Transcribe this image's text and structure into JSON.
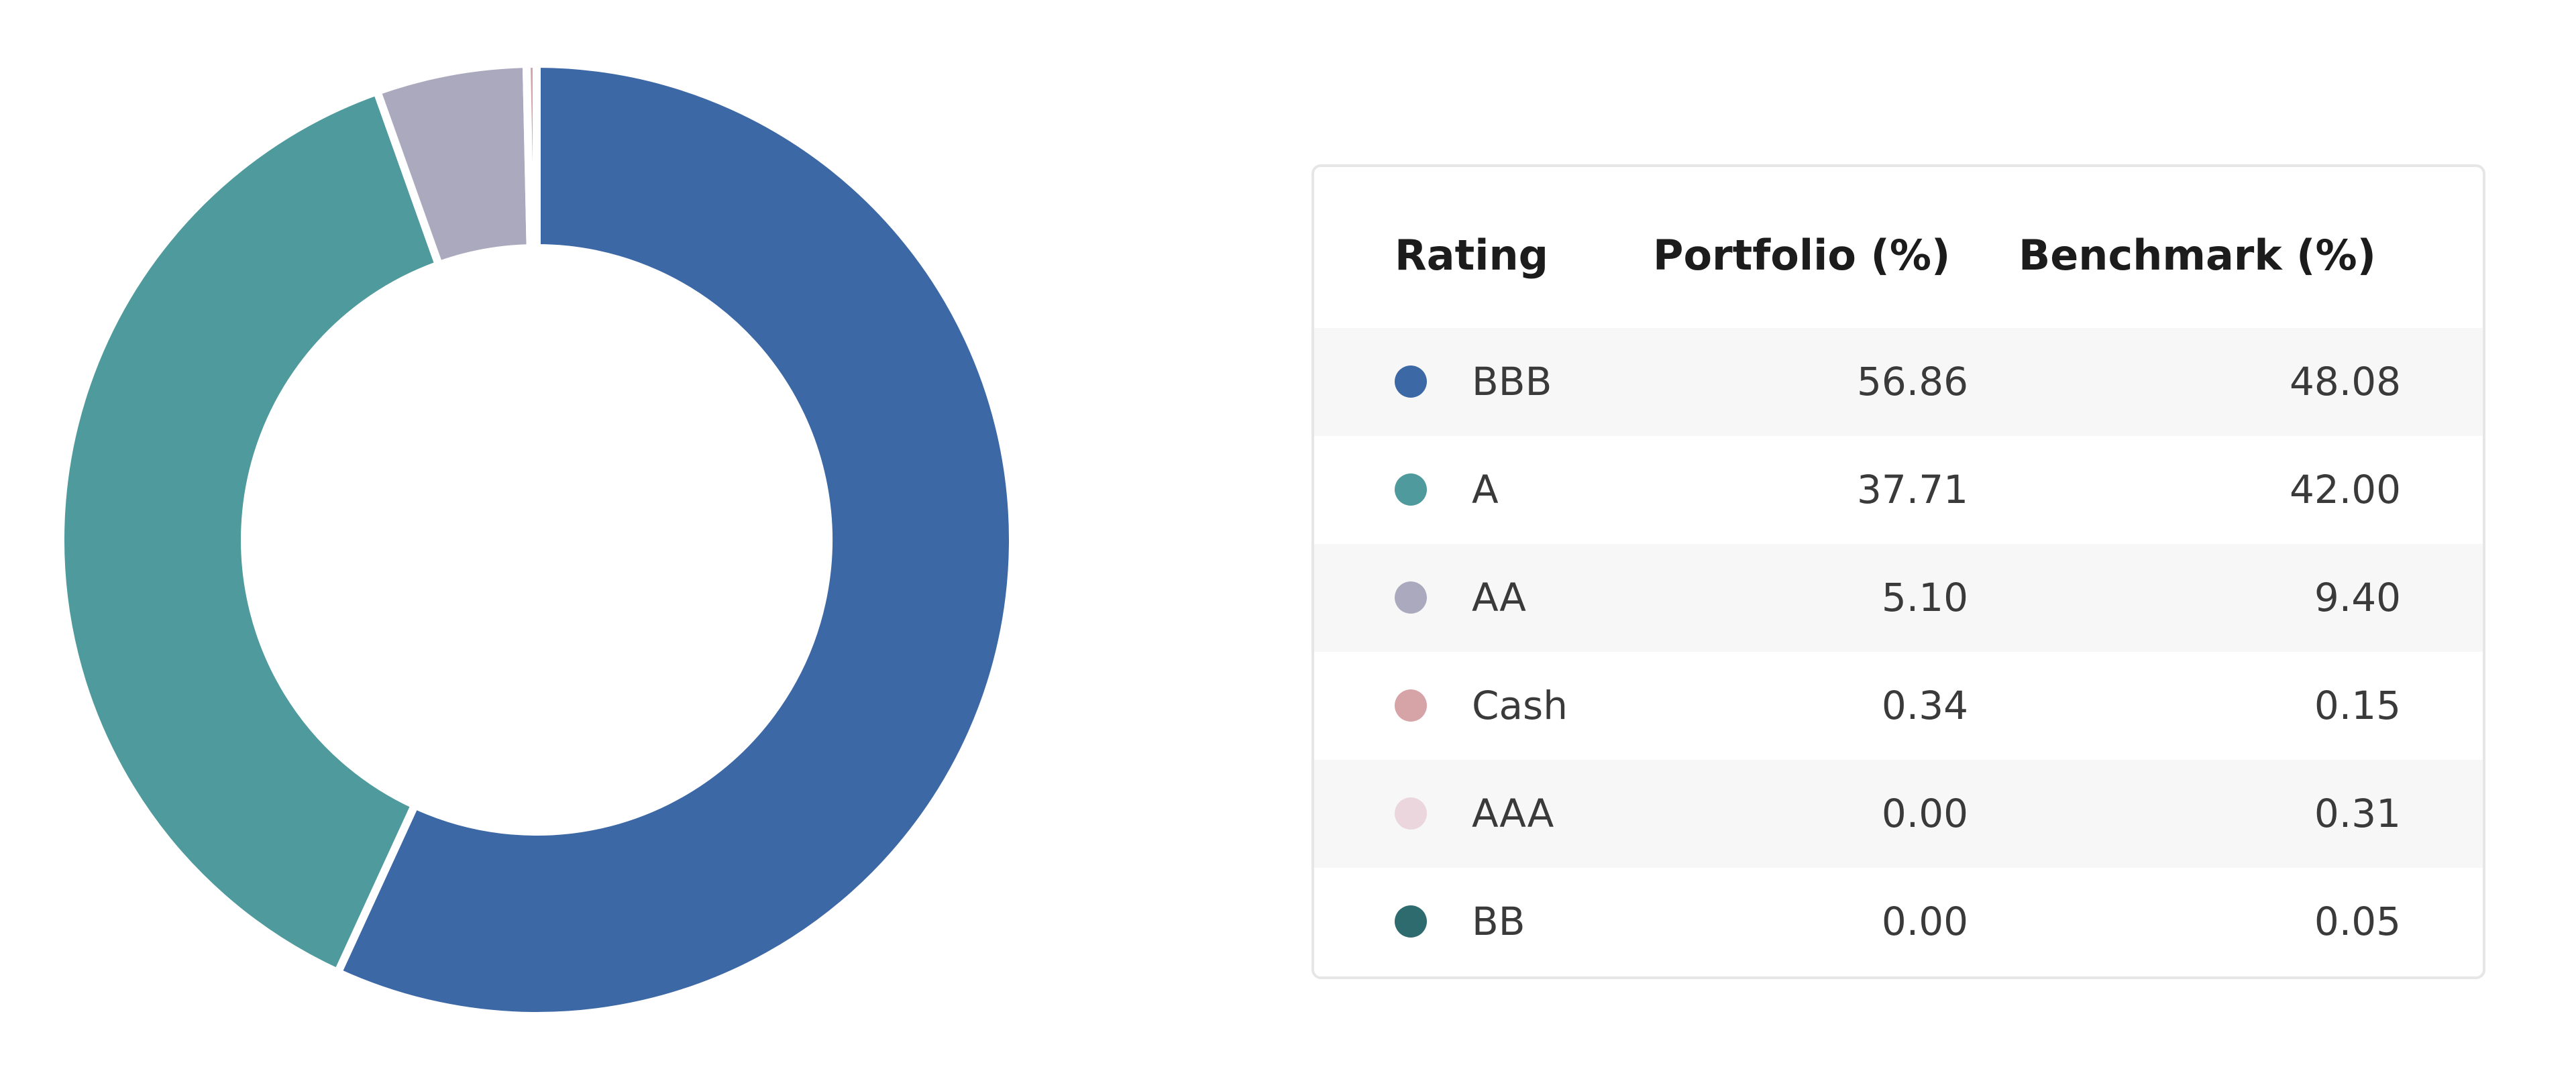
{
  "chart_data": {
    "type": "pie",
    "style": "donut",
    "table": {
      "columns": [
        "Rating",
        "Portfolio (%)",
        "Benchmark (%)"
      ],
      "rows": [
        {
          "rating": "BBB",
          "portfolio": "56.86",
          "benchmark": "48.08",
          "color": "#3c68a6"
        },
        {
          "rating": "A",
          "portfolio": "37.71",
          "benchmark": "42.00",
          "color": "#4e9a9c"
        },
        {
          "rating": "AA",
          "portfolio": "5.10",
          "benchmark": "9.40",
          "color": "#aba9bd"
        },
        {
          "rating": "Cash",
          "portfolio": "0.34",
          "benchmark": "0.15",
          "color": "#d6a3a6"
        },
        {
          "rating": "AAA",
          "portfolio": "0.00",
          "benchmark": "0.31",
          "color": "#ebd6dd"
        },
        {
          "rating": "BB",
          "portfolio": "0.00",
          "benchmark": "0.05",
          "color": "#2e6b6e"
        }
      ]
    },
    "slices": [
      {
        "label": "BBB",
        "value": 56.86,
        "color": "#3c68a6"
      },
      {
        "label": "A",
        "value": 37.71,
        "color": "#4e9a9c"
      },
      {
        "label": "AA",
        "value": 5.1,
        "color": "#aba9bd"
      },
      {
        "label": "Cash",
        "value": 0.34,
        "color": "#d6a3a6"
      }
    ]
  }
}
